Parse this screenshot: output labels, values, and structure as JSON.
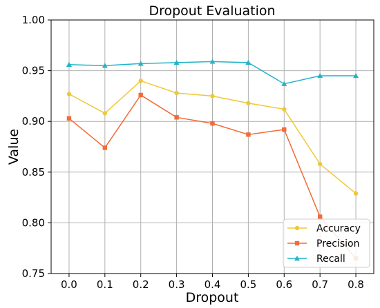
{
  "chart_data": {
    "type": "line",
    "title": "Dropout Evaluation",
    "xlabel": "Dropout",
    "ylabel": "Value",
    "x": [
      0.0,
      0.1,
      0.2,
      0.3,
      0.4,
      0.5,
      0.6,
      0.7,
      0.8
    ],
    "x_tick_labels": [
      "0.0",
      "0.1",
      "0.2",
      "0.3",
      "0.4",
      "0.5",
      "0.6",
      "0.7",
      "0.8"
    ],
    "y_tick_values": [
      0.75,
      0.8,
      0.85,
      0.9,
      0.95,
      1.0
    ],
    "y_tick_labels": [
      "0.75",
      "0.80",
      "0.85",
      "0.90",
      "0.95",
      "1.00"
    ],
    "xlim": [
      -0.05,
      0.85
    ],
    "ylim": [
      0.75,
      1.0
    ],
    "grid": true,
    "legend_position": "bottom-right",
    "series": [
      {
        "name": "Accuracy",
        "color": "#eec937",
        "marker": "circle",
        "values": [
          0.927,
          0.908,
          0.94,
          0.928,
          0.925,
          0.918,
          0.912,
          0.858,
          0.829
        ]
      },
      {
        "name": "Precision",
        "color": "#f26b38",
        "marker": "square",
        "values": [
          0.903,
          0.874,
          0.926,
          0.904,
          0.898,
          0.887,
          0.892,
          0.806,
          0.765
        ]
      },
      {
        "name": "Recall",
        "color": "#22b4c8",
        "marker": "triangle",
        "values": [
          0.956,
          0.955,
          0.957,
          0.958,
          0.959,
          0.958,
          0.937,
          0.945,
          0.945
        ]
      }
    ]
  }
}
